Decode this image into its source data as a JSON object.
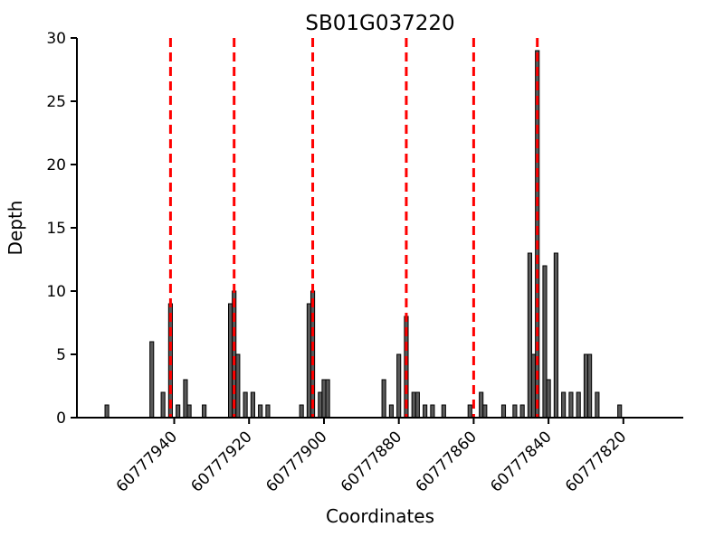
{
  "chart_data": {
    "type": "bar",
    "title": "SB01G037220",
    "xlabel": "Coordinates",
    "ylabel": "Depth",
    "x_axis_direction": "decreasing",
    "x_ticks": [
      60777940,
      60777920,
      60777900,
      60777880,
      60777860,
      60777840,
      60777820
    ],
    "y_ticks": [
      0,
      5,
      10,
      15,
      20,
      25,
      30
    ],
    "ylim": [
      0,
      30
    ],
    "x_range_left": 60777966,
    "x_range_right": 60777804,
    "grid": "off",
    "legend": "none",
    "bar_color": "#595959",
    "bar_edge_color": "#000000",
    "axis_color": "#000000",
    "marker_line_color": "#ff0000",
    "marker_line_style": "dashed",
    "marker_lines": [
      60777941,
      60777924,
      60777903,
      60777878,
      60777860,
      60777843
    ],
    "bars": [
      {
        "coordinate": 60777958,
        "depth": 1
      },
      {
        "coordinate": 60777946,
        "depth": 6
      },
      {
        "coordinate": 60777943,
        "depth": 2
      },
      {
        "coordinate": 60777941,
        "depth": 9
      },
      {
        "coordinate": 60777939,
        "depth": 1
      },
      {
        "coordinate": 60777937,
        "depth": 3
      },
      {
        "coordinate": 60777936,
        "depth": 1
      },
      {
        "coordinate": 60777932,
        "depth": 1
      },
      {
        "coordinate": 60777925,
        "depth": 9
      },
      {
        "coordinate": 60777924,
        "depth": 10
      },
      {
        "coordinate": 60777923,
        "depth": 5
      },
      {
        "coordinate": 60777921,
        "depth": 2
      },
      {
        "coordinate": 60777919,
        "depth": 2
      },
      {
        "coordinate": 60777917,
        "depth": 1
      },
      {
        "coordinate": 60777915,
        "depth": 1
      },
      {
        "coordinate": 60777906,
        "depth": 1
      },
      {
        "coordinate": 60777904,
        "depth": 9
      },
      {
        "coordinate": 60777903,
        "depth": 10
      },
      {
        "coordinate": 60777901,
        "depth": 2
      },
      {
        "coordinate": 60777900,
        "depth": 3
      },
      {
        "coordinate": 60777899,
        "depth": 3
      },
      {
        "coordinate": 60777884,
        "depth": 3
      },
      {
        "coordinate": 60777882,
        "depth": 1
      },
      {
        "coordinate": 60777880,
        "depth": 5
      },
      {
        "coordinate": 60777878,
        "depth": 8
      },
      {
        "coordinate": 60777876,
        "depth": 2
      },
      {
        "coordinate": 60777875,
        "depth": 2
      },
      {
        "coordinate": 60777873,
        "depth": 1
      },
      {
        "coordinate": 60777871,
        "depth": 1
      },
      {
        "coordinate": 60777868,
        "depth": 1
      },
      {
        "coordinate": 60777861,
        "depth": 1
      },
      {
        "coordinate": 60777858,
        "depth": 2
      },
      {
        "coordinate": 60777857,
        "depth": 1
      },
      {
        "coordinate": 60777852,
        "depth": 1
      },
      {
        "coordinate": 60777849,
        "depth": 1
      },
      {
        "coordinate": 60777847,
        "depth": 1
      },
      {
        "coordinate": 60777845,
        "depth": 13
      },
      {
        "coordinate": 60777844,
        "depth": 5
      },
      {
        "coordinate": 60777843,
        "depth": 29
      },
      {
        "coordinate": 60777841,
        "depth": 12
      },
      {
        "coordinate": 60777840,
        "depth": 3
      },
      {
        "coordinate": 60777838,
        "depth": 13
      },
      {
        "coordinate": 60777836,
        "depth": 2
      },
      {
        "coordinate": 60777834,
        "depth": 2
      },
      {
        "coordinate": 60777832,
        "depth": 2
      },
      {
        "coordinate": 60777830,
        "depth": 5
      },
      {
        "coordinate": 60777829,
        "depth": 5
      },
      {
        "coordinate": 60777827,
        "depth": 2
      },
      {
        "coordinate": 60777821,
        "depth": 1
      }
    ]
  }
}
